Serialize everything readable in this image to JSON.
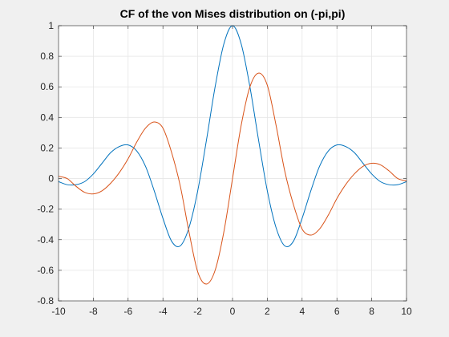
{
  "chart_data": {
    "type": "line",
    "title": "CF of the von Mises distribution on (-pi,pi)",
    "xlabel": "",
    "ylabel": "",
    "xlim": [
      -10,
      10
    ],
    "ylim": [
      -0.8,
      1
    ],
    "xticks": [
      -10,
      -8,
      -6,
      -4,
      -2,
      0,
      2,
      4,
      6,
      8,
      10
    ],
    "yticks": [
      -0.8,
      -0.6,
      -0.4,
      -0.2,
      0,
      0.2,
      0.4,
      0.6,
      0.8,
      1
    ],
    "ytick_labels": [
      "-0.8",
      "-0.6",
      "-0.4",
      "-0.2",
      "0",
      "0.2",
      "0.4",
      "0.6",
      "0.8",
      "1"
    ],
    "grid": true,
    "series": [
      {
        "color": "#0072bd",
        "x": [
          -10,
          -9.5,
          -9,
          -8.5,
          -8,
          -7.5,
          -7,
          -6.5,
          -6,
          -5.5,
          -5,
          -4.5,
          -4,
          -3.5,
          -3,
          -2.5,
          -2,
          -1.5,
          -1,
          -0.5,
          0,
          0.5,
          1,
          1.5,
          2,
          2.5,
          3,
          3.5,
          4,
          4.5,
          5,
          5.5,
          6,
          6.5,
          7,
          7.5,
          8,
          8.5,
          9,
          9.5,
          10
        ],
        "y": [
          -0.02,
          -0.04,
          -0.04,
          -0.02,
          0.03,
          0.1,
          0.17,
          0.21,
          0.22,
          0.18,
          0.08,
          -0.08,
          -0.26,
          -0.41,
          -0.44,
          -0.32,
          -0.08,
          0.25,
          0.6,
          0.88,
          1.0,
          0.88,
          0.6,
          0.25,
          -0.08,
          -0.32,
          -0.44,
          -0.41,
          -0.26,
          -0.08,
          0.08,
          0.18,
          0.22,
          0.21,
          0.17,
          0.1,
          0.03,
          -0.02,
          -0.04,
          -0.04,
          -0.02
        ]
      },
      {
        "color": "#d95319",
        "x": [
          -10,
          -9.5,
          -9,
          -8.5,
          -8,
          -7.5,
          -7,
          -6.5,
          -6,
          -5.5,
          -5,
          -4.5,
          -4,
          -3.5,
          -3,
          -2.5,
          -2,
          -1.5,
          -1,
          -0.5,
          0,
          0.5,
          1,
          1.5,
          2,
          2.5,
          3,
          3.5,
          4,
          4.5,
          5,
          5.5,
          6,
          6.5,
          7,
          7.5,
          8,
          8.5,
          9,
          9.5,
          10
        ],
        "y": [
          0.015,
          0.0,
          -0.05,
          -0.09,
          -0.1,
          -0.08,
          -0.03,
          0.04,
          0.13,
          0.24,
          0.33,
          0.37,
          0.33,
          0.17,
          -0.05,
          -0.35,
          -0.61,
          -0.69,
          -0.6,
          -0.35,
          0.0,
          0.35,
          0.6,
          0.69,
          0.61,
          0.35,
          0.05,
          -0.17,
          -0.33,
          -0.37,
          -0.33,
          -0.24,
          -0.13,
          -0.04,
          0.03,
          0.08,
          0.1,
          0.09,
          0.05,
          0.0,
          -0.015
        ]
      }
    ]
  }
}
